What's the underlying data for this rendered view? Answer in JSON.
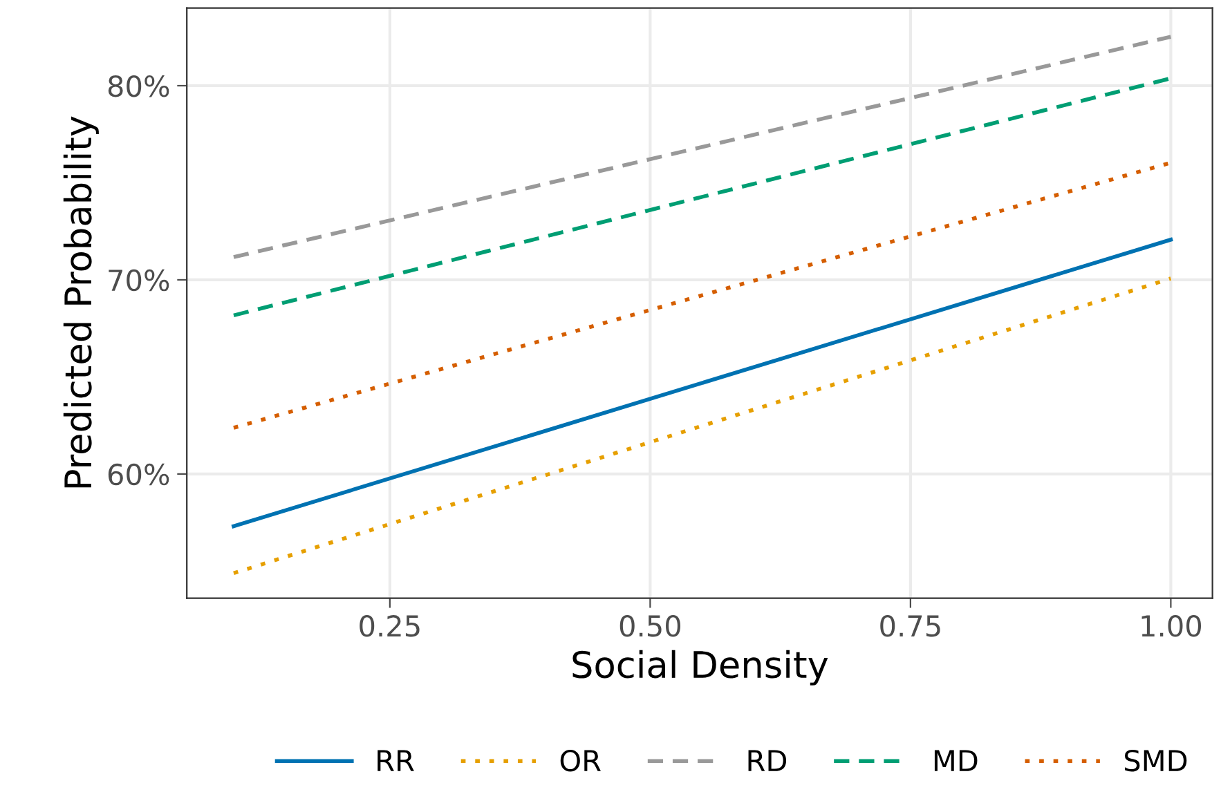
{
  "chart_data": {
    "type": "line",
    "xlabel": "Social Density",
    "ylabel": "Predicted Probability",
    "xlim": [
      0.055,
      1.04
    ],
    "ylim": [
      53.6,
      84.0
    ],
    "xticks": [
      {
        "value": 0.25,
        "label": "0.25"
      },
      {
        "value": 0.5,
        "label": "0.50"
      },
      {
        "value": 0.75,
        "label": "0.75"
      },
      {
        "value": 1.0,
        "label": "1.00"
      }
    ],
    "yticks": [
      {
        "value": 60,
        "label": "60%"
      },
      {
        "value": 70,
        "label": "70%"
      },
      {
        "value": 80,
        "label": "80%"
      }
    ],
    "grid": true,
    "legend": "bottom",
    "x": [
      0.1,
      1.0
    ],
    "series": [
      {
        "name": "RR",
        "color": "#0072b2",
        "line_style": "solid",
        "values": [
          57.31,
          72.07
        ]
      },
      {
        "name": "OR",
        "color": "#e69f00",
        "line_style": "dotted",
        "values": [
          54.89,
          70.07
        ]
      },
      {
        "name": "RD",
        "color": "#999999",
        "line_style": "dashed",
        "values": [
          71.17,
          82.52
        ]
      },
      {
        "name": "MD",
        "color": "#009e73",
        "line_style": "dashed",
        "values": [
          68.17,
          80.38
        ]
      },
      {
        "name": "SMD",
        "color": "#d55e00",
        "line_style": "dotted",
        "values": [
          62.38,
          76.03
        ]
      }
    ]
  }
}
